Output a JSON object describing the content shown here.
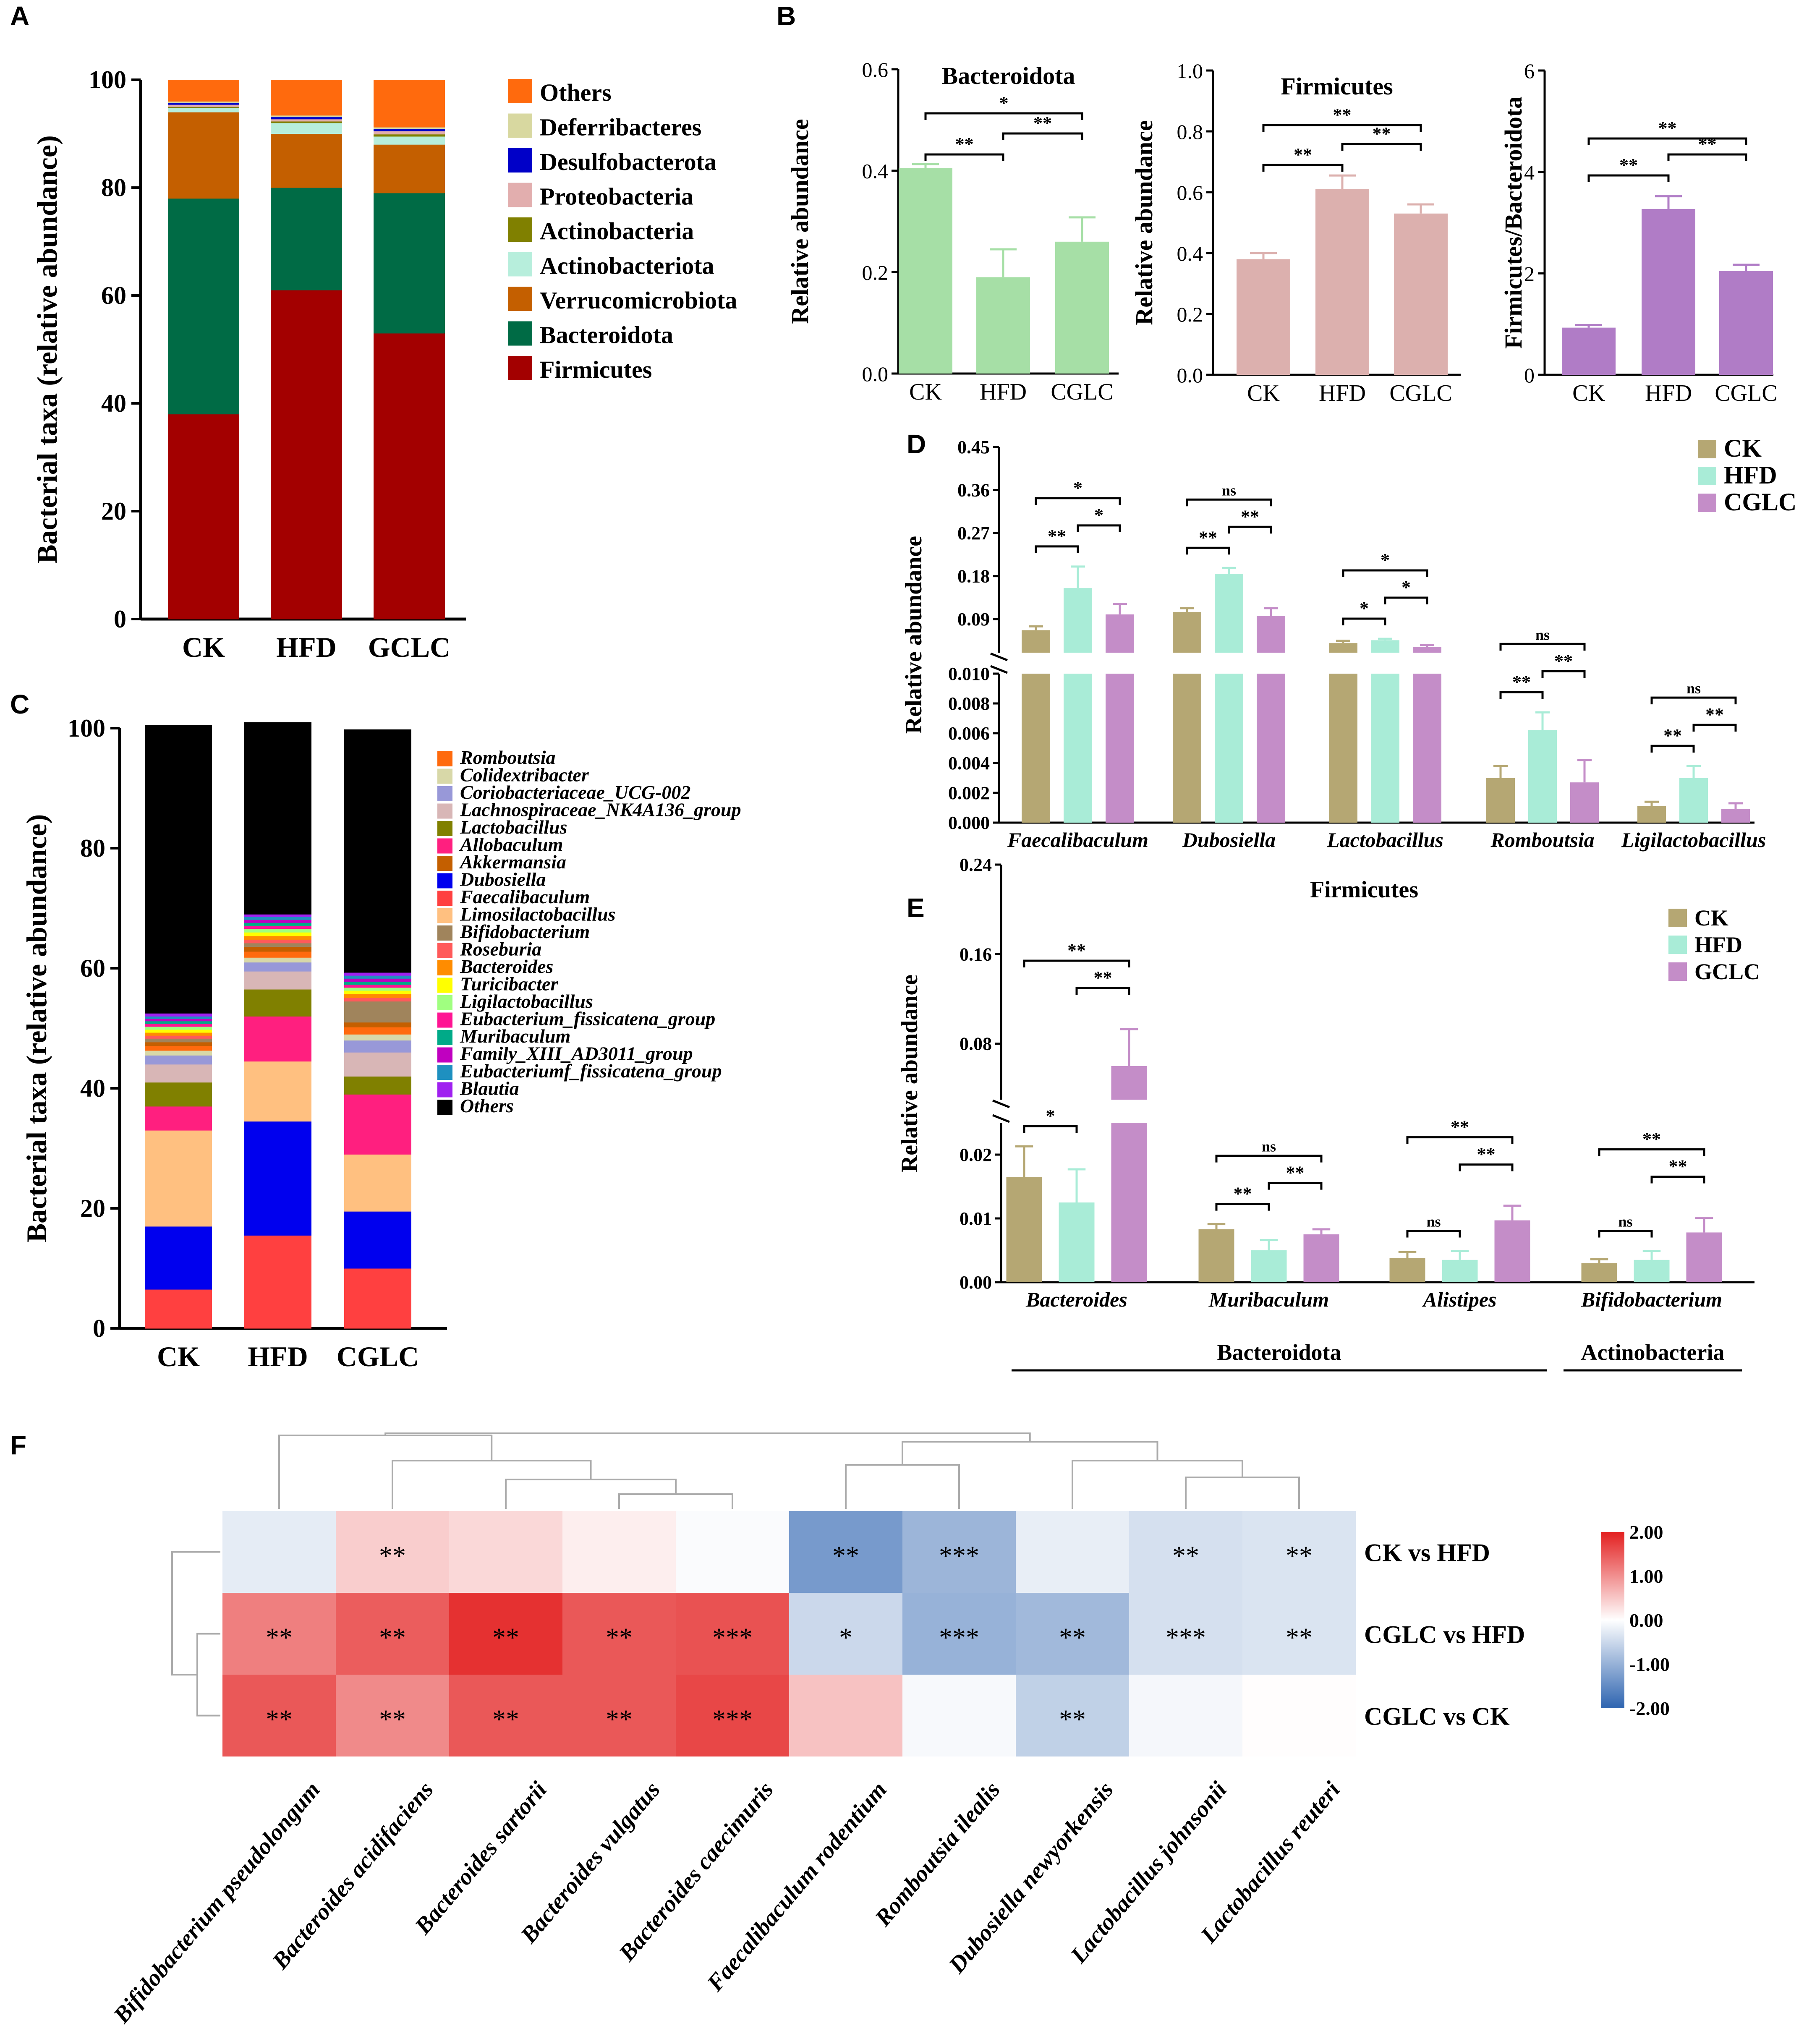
{
  "panels": [
    "A",
    "B",
    "C",
    "D",
    "E",
    "F"
  ],
  "chart_data": [
    {
      "id": "A",
      "type": "stacked-bar",
      "ylabel": "Bacterial taxa (relative abundance)",
      "ylim": [
        0,
        100
      ],
      "yticks": [
        0,
        20,
        40,
        60,
        80,
        100
      ],
      "categories": [
        "CK",
        "HFD",
        "GCLC"
      ],
      "series": [
        {
          "name": "Firmicutes",
          "color": "#a30000",
          "values": [
            38,
            61,
            53
          ]
        },
        {
          "name": "Bacteroidota",
          "color": "#006b45",
          "values": [
            40,
            19,
            26
          ]
        },
        {
          "name": "Verrucomicrobiota",
          "color": "#c45f00",
          "values": [
            16,
            10,
            9
          ]
        },
        {
          "name": "Actinobacteriota",
          "color": "#b7eedc",
          "values": [
            0.8,
            2,
            1.5
          ]
        },
        {
          "name": "Actinobacteria",
          "color": "#808000",
          "values": [
            0.2,
            0.3,
            0.4
          ]
        },
        {
          "name": "Proteobacteria",
          "color": "#e2aeae",
          "values": [
            0.4,
            0.4,
            0.6
          ]
        },
        {
          "name": "Desulfobacterota",
          "color": "#0000c8",
          "values": [
            0.3,
            0.4,
            0.4
          ]
        },
        {
          "name": "Deferribacteres",
          "color": "#d8d8a0",
          "values": [
            0.3,
            0.3,
            0.3
          ]
        },
        {
          "name": "Others",
          "color": "#ff6a0d",
          "values": [
            4,
            6.6,
            8.8
          ]
        }
      ],
      "legend_order": [
        "Others",
        "Deferribacteres",
        "Desulfobacterota",
        "Proteobacteria",
        "Actinobacteria",
        "Actinobacteriota",
        "Verrucomicrobiota",
        "Bacteroidota",
        "Firmicutes"
      ]
    },
    {
      "id": "B1",
      "type": "bar",
      "title": "Bacteroidota",
      "ylabel": "Relative abundance",
      "ylim": [
        0,
        0.6
      ],
      "yticks": [
        "0.0",
        "0.2",
        "0.4",
        "0.6"
      ],
      "ytick_values": [
        0,
        0.2,
        0.4,
        0.6
      ],
      "categories": [
        "CK",
        "HFD",
        "CGLC"
      ],
      "values": [
        0.405,
        0.19,
        0.26
      ],
      "errors": [
        0.008,
        0.055,
        0.048
      ],
      "color": "#a6dfa6",
      "annotations": [
        {
          "from": 0,
          "to": 1,
          "label": "**"
        },
        {
          "from": 1,
          "to": 2,
          "label": "**"
        },
        {
          "from": 0,
          "to": 2,
          "label": "*"
        }
      ]
    },
    {
      "id": "B2",
      "type": "bar",
      "title": "Firmicutes",
      "ylabel": "Relative abundance",
      "ylim": [
        0,
        1.0
      ],
      "yticks": [
        "0.0",
        "0.2",
        "0.4",
        "0.6",
        "0.8",
        "1.0"
      ],
      "ytick_values": [
        0,
        0.2,
        0.4,
        0.6,
        0.8,
        1.0
      ],
      "categories": [
        "CK",
        "HFD",
        "CGLC"
      ],
      "values": [
        0.38,
        0.61,
        0.53
      ],
      "errors": [
        0.02,
        0.045,
        0.03
      ],
      "color": "#dcb0ae",
      "annotations": [
        {
          "from": 0,
          "to": 1,
          "label": "**"
        },
        {
          "from": 1,
          "to": 2,
          "label": "**"
        },
        {
          "from": 0,
          "to": 2,
          "label": "**"
        }
      ]
    },
    {
      "id": "B3",
      "type": "bar",
      "title": "",
      "ylabel": "Firmicutes/Bacteroidota",
      "ylim": [
        0,
        6
      ],
      "yticks": [
        "0",
        "2",
        "4",
        "6"
      ],
      "ytick_values": [
        0,
        2,
        4,
        6
      ],
      "categories": [
        "CK",
        "HFD",
        "CGLC"
      ],
      "values": [
        0.93,
        3.27,
        2.05
      ],
      "errors": [
        0.05,
        0.25,
        0.12
      ],
      "color": "#b07cc6",
      "annotations": [
        {
          "from": 0,
          "to": 1,
          "label": "**"
        },
        {
          "from": 1,
          "to": 2,
          "label": "**"
        },
        {
          "from": 0,
          "to": 2,
          "label": "**"
        }
      ]
    },
    {
      "id": "C",
      "type": "stacked-bar",
      "ylabel": "Bacterial taxa (relative abundance)",
      "ylim": [
        0,
        100
      ],
      "yticks": [
        0,
        20,
        40,
        60,
        80,
        100
      ],
      "categories": [
        "CK",
        "HFD",
        "CGLC"
      ],
      "series": [
        {
          "name": "Faecalibaculum",
          "color": "#ff4040",
          "values": [
            6.5,
            15.5,
            10
          ]
        },
        {
          "name": "Dubosiella",
          "color": "#0000ee",
          "values": [
            10.5,
            19,
            9.5
          ]
        },
        {
          "name": "Limosilactobacillus",
          "color": "#ffc080",
          "values": [
            16,
            10,
            9.5
          ]
        },
        {
          "name": "Allobaculum",
          "color": "#ff1f7f",
          "values": [
            4,
            7.5,
            10
          ]
        },
        {
          "name": "Lactobacillus",
          "color": "#808000",
          "values": [
            4,
            4.5,
            3
          ]
        },
        {
          "name": "Lachnospiraceae_NK4A136_group",
          "color": "#d8b6b6",
          "values": [
            3,
            3,
            4
          ]
        },
        {
          "name": "Coriobacteriaceae_UCG-002",
          "color": "#9898d8",
          "values": [
            1.5,
            1.5,
            2
          ]
        },
        {
          "name": "Colidextribacter",
          "color": "#d8d8a8",
          "values": [
            0.8,
            0.8,
            1
          ]
        },
        {
          "name": "Romboutsia",
          "color": "#ff6a0d",
          "values": [
            0.8,
            1,
            1.2
          ]
        },
        {
          "name": "Akkermansia",
          "color": "#c45f00",
          "values": [
            0.6,
            0.8,
            0.8
          ]
        },
        {
          "name": "Bifidobacterium",
          "color": "#a0845c",
          "values": [
            0.6,
            0.6,
            3.5
          ]
        },
        {
          "name": "Roseburia",
          "color": "#ff5a5a",
          "values": [
            0.5,
            0.6,
            0.6
          ]
        },
        {
          "name": "Bacteroides",
          "color": "#ff8c00",
          "values": [
            0.5,
            0.6,
            0.6
          ]
        },
        {
          "name": "Turicibacter",
          "color": "#ffff00",
          "values": [
            0.5,
            0.6,
            0.6
          ]
        },
        {
          "name": "Ligilactobacillus",
          "color": "#a0ff80",
          "values": [
            0.5,
            0.6,
            0.5
          ]
        },
        {
          "name": "Eubacterium_fissicatena_group",
          "color": "#ff1493",
          "values": [
            0.5,
            0.5,
            0.5
          ]
        },
        {
          "name": "Muribaculum",
          "color": "#00aa88",
          "values": [
            0.4,
            0.5,
            0.5
          ]
        },
        {
          "name": "Family_XIII_AD3011_group",
          "color": "#c000c0",
          "values": [
            0.4,
            0.5,
            0.5
          ]
        },
        {
          "name": "Eubacteriumf_fissicatena_group",
          "color": "#1e90c0",
          "values": [
            0.4,
            0.5,
            0.5
          ]
        },
        {
          "name": "Blautia",
          "color": "#a020f0",
          "values": [
            0.5,
            0.4,
            0.5
          ]
        },
        {
          "name": "Others",
          "color": "#000000",
          "values": [
            48,
            32,
            40.5
          ]
        }
      ],
      "legend_order": [
        "Romboutsia",
        "Colidextribacter",
        "Coriobacteriaceae_UCG-002",
        "Lachnospiraceae_NK4A136_group",
        "Lactobacillus",
        "Allobaculum",
        "Akkermansia",
        "Dubosiella",
        "Faecalibaculum",
        "Limosilactobacillus",
        "Bifidobacterium",
        "Roseburia",
        "Bacteroides",
        "Turicibacter",
        "Ligilactobacillus",
        "Eubacterium_fissicatena_group",
        "Muribaculum",
        "Family_XIII_AD3011_group",
        "Eubacteriumf_fissicatena_group",
        "Blautia",
        "Others"
      ]
    },
    {
      "id": "D",
      "type": "grouped-bar-broken-axis",
      "ylabel": "Relative abundance",
      "upper_ticks": [
        "0.09",
        "0.18",
        "0.27",
        "0.36",
        "0.45"
      ],
      "upper_tick_values": [
        0.09,
        0.18,
        0.27,
        0.36,
        0.45
      ],
      "upper_range": [
        0.02,
        0.45
      ],
      "lower_ticks": [
        "0.000",
        "0.002",
        "0.004",
        "0.006",
        "0.008",
        "0.010"
      ],
      "lower_tick_values": [
        0,
        0.002,
        0.004,
        0.006,
        0.008,
        0.01
      ],
      "lower_range": [
        0,
        0.01
      ],
      "categories": [
        "Faecalibaculum",
        "Dubosiella",
        "Lactobacillus",
        "Romboutsia",
        "Ligilactobacillus"
      ],
      "groups": [
        "CK",
        "HFD",
        "CGLC"
      ],
      "colors": [
        "#b5a773",
        "#a9ecd7",
        "#c48dc8"
      ],
      "values": [
        [
          0.067,
          0.155,
          0.1
        ],
        [
          0.105,
          0.185,
          0.097
        ],
        [
          0.04,
          0.046,
          0.032
        ],
        [
          0.003,
          0.0062,
          0.0027
        ],
        [
          0.0011,
          0.003,
          0.0009
        ]
      ],
      "errors": [
        [
          0.008,
          0.045,
          0.022
        ],
        [
          0.008,
          0.012,
          0.016
        ],
        [
          0.005,
          0.003,
          0.004
        ],
        [
          0.0008,
          0.0012,
          0.0015
        ],
        [
          0.0003,
          0.0008,
          0.0004
        ]
      ],
      "annotations": [
        [
          {
            "from": 0,
            "to": 1,
            "label": "**"
          },
          {
            "from": 1,
            "to": 2,
            "label": "*"
          },
          {
            "from": 0,
            "to": 2,
            "label": "*"
          }
        ],
        [
          {
            "from": 0,
            "to": 1,
            "label": "**"
          },
          {
            "from": 1,
            "to": 2,
            "label": "**"
          },
          {
            "from": 0,
            "to": 2,
            "label": "ns"
          }
        ],
        [
          {
            "from": 0,
            "to": 1,
            "label": "*"
          },
          {
            "from": 1,
            "to": 2,
            "label": "*"
          },
          {
            "from": 0,
            "to": 2,
            "label": "*"
          }
        ],
        [
          {
            "from": 0,
            "to": 1,
            "label": "**"
          },
          {
            "from": 1,
            "to": 2,
            "label": "**"
          },
          {
            "from": 0,
            "to": 2,
            "label": "ns"
          }
        ],
        [
          {
            "from": 0,
            "to": 1,
            "label": "**"
          },
          {
            "from": 1,
            "to": 2,
            "label": "**"
          },
          {
            "from": 0,
            "to": 2,
            "label": "ns"
          }
        ]
      ]
    },
    {
      "id": "E",
      "type": "grouped-bar-broken-axis",
      "title": "Firmicutes",
      "ylabel": "Relative abundance",
      "upper_ticks": [
        "0.08",
        "0.16",
        "0.24"
      ],
      "upper_tick_values": [
        0.08,
        0.16,
        0.24
      ],
      "upper_range": [
        0.03,
        0.24
      ],
      "lower_ticks": [
        "0.00",
        "0.01",
        "0.02"
      ],
      "lower_tick_values": [
        0,
        0.01,
        0.02
      ],
      "lower_range": [
        0,
        0.025
      ],
      "categories": [
        "Bacteroides",
        "Muribaculum",
        "Alistipes",
        "Bifidobacterium"
      ],
      "groups": [
        "CK",
        "HFD",
        "GCLC"
      ],
      "colors": [
        "#b5a773",
        "#a9ecd7",
        "#c48dc8"
      ],
      "values": [
        [
          0.0165,
          0.0125,
          0.06
        ],
        [
          0.0083,
          0.005,
          0.0075
        ],
        [
          0.0038,
          0.0035,
          0.0097
        ],
        [
          0.003,
          0.0035,
          0.0078
        ]
      ],
      "errors": [
        [
          0.0048,
          0.0052,
          0.033
        ],
        [
          0.0008,
          0.0016,
          0.0008
        ],
        [
          0.0009,
          0.0014,
          0.0023
        ],
        [
          0.0006,
          0.0014,
          0.0023
        ]
      ],
      "annotations": [
        [
          {
            "from": 0,
            "to": 1,
            "label": "*"
          },
          {
            "from": 1,
            "to": 2,
            "label": "**"
          },
          {
            "from": 0,
            "to": 2,
            "label": "**"
          }
        ],
        [
          {
            "from": 0,
            "to": 1,
            "label": "**"
          },
          {
            "from": 1,
            "to": 2,
            "label": "**"
          },
          {
            "from": 0,
            "to": 2,
            "label": "ns"
          }
        ],
        [
          {
            "from": 0,
            "to": 1,
            "label": "ns"
          },
          {
            "from": 1,
            "to": 2,
            "label": "**"
          },
          {
            "from": 0,
            "to": 2,
            "label": "**"
          }
        ],
        [
          {
            "from": 0,
            "to": 1,
            "label": "ns"
          },
          {
            "from": 1,
            "to": 2,
            "label": "**"
          },
          {
            "from": 0,
            "to": 2,
            "label": "**"
          }
        ]
      ],
      "phyla": [
        {
          "label": "Bacteroidota",
          "from": 0,
          "to": 2
        },
        {
          "label": "Actinobacteria",
          "from": 3,
          "to": 3
        }
      ]
    },
    {
      "id": "F",
      "type": "heatmap",
      "columns": [
        "Bifidobacterium pseudolongum",
        "Bacteroides acidifaciens",
        "Bacteroides sartorii",
        "Bacteroides vulgatus",
        "Bacteroides caecimuris",
        "Faecalibaculum rodentium",
        "Romboutsia ilealis",
        "Dubosiella newyorkensis",
        "Lactobacillus johnsonii",
        "Lactobacillus reuteri"
      ],
      "rows": [
        "CK vs HFD",
        "CGLC vs HFD",
        "CGLC vs CK"
      ],
      "values": [
        [
          -0.25,
          0.45,
          0.35,
          0.15,
          -0.05,
          -1.3,
          -0.95,
          -0.22,
          -0.4,
          -0.35
        ],
        [
          1.15,
          1.45,
          1.85,
          1.5,
          1.55,
          -0.5,
          -1.0,
          -0.9,
          -0.4,
          -0.35
        ],
        [
          1.5,
          1.05,
          1.5,
          1.5,
          1.65,
          0.55,
          -0.08,
          -0.6,
          -0.1,
          0.02
        ]
      ],
      "stars": [
        [
          "",
          "**",
          "",
          "",
          "",
          "**",
          "***",
          "",
          "**",
          "**"
        ],
        [
          "**",
          "**",
          "**",
          "**",
          "***",
          "*",
          "***",
          "**",
          "***",
          "**"
        ],
        [
          "**",
          "**",
          "**",
          "**",
          "***",
          "",
          "",
          "**",
          "",
          ""
        ]
      ],
      "colorbar": {
        "ticks": [
          "2.00",
          "1.00",
          "0.00",
          "-1.00",
          "-2.00"
        ],
        "tick_values": [
          2,
          1,
          0,
          -1,
          -2
        ],
        "low": "#2e64b0",
        "mid": "#ffffff",
        "high": "#e32020"
      }
    }
  ]
}
